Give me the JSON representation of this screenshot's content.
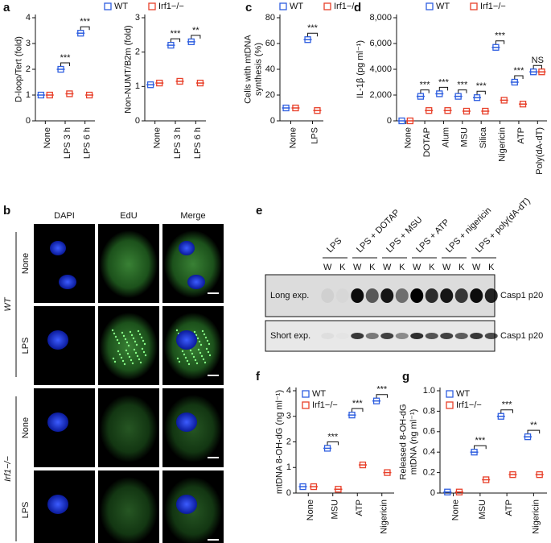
{
  "panel_labels": {
    "a": "a",
    "b": "b",
    "c": "c",
    "d": "d",
    "e": "e",
    "f": "f",
    "g": "g"
  },
  "chart_data": [
    {
      "type": "dot",
      "ylabel": "D-loop/Tert (fold)",
      "categories": [
        "None",
        "LPS 3 h",
        "LPS 6 h"
      ],
      "series": [
        {
          "name": "WT",
          "color": "#2f5fe0",
          "values": [
            1.0,
            2.0,
            3.4
          ]
        },
        {
          "name": "Irf1−/−",
          "color": "#e8402a",
          "values": [
            1.0,
            1.05,
            1.0
          ]
        }
      ],
      "significance": [
        null,
        "***",
        "***"
      ],
      "ylim": [
        0,
        4
      ],
      "yticks": [
        0,
        1,
        2,
        3,
        4
      ],
      "legend": "top"
    },
    {
      "type": "dot",
      "ylabel": "Non-NUMT/B2m (fold)",
      "categories": [
        "None",
        "LPS 3 h",
        "LPS 6 h"
      ],
      "series": [
        {
          "color": "#2f5fe0",
          "values": [
            1.05,
            2.2,
            2.3
          ]
        },
        {
          "color": "#e8402a",
          "values": [
            1.1,
            1.15,
            1.1
          ]
        }
      ],
      "significance": [
        null,
        "***",
        "**"
      ],
      "ylim": [
        0,
        3
      ],
      "yticks": [
        0,
        1,
        2,
        3
      ]
    },
    {
      "type": "dot",
      "ylabel": [
        "Cells with mtDNA",
        "synthesis (%)"
      ],
      "categories": [
        "None",
        "LPS"
      ],
      "series": [
        {
          "name": "WT",
          "color": "#2f5fe0",
          "values": [
            10,
            63
          ]
        },
        {
          "name": "Irf1−/−",
          "color": "#e8402a",
          "values": [
            10,
            8
          ]
        }
      ],
      "significance": [
        null,
        "***"
      ],
      "ylim": [
        0,
        80
      ],
      "yticks": [
        0,
        20,
        40,
        60,
        80
      ],
      "legend": "top"
    },
    {
      "type": "dot",
      "ylabel": "IL-1β (pg ml⁻¹)",
      "categories": [
        "None",
        "DOTAP",
        "Alum",
        "MSU",
        "Silica",
        "Nigericin",
        "ATP",
        "Poly(dA-dT)"
      ],
      "series": [
        {
          "name": "WT",
          "color": "#2f5fe0",
          "values": [
            0,
            1900,
            2100,
            1900,
            1800,
            5700,
            3000,
            3800
          ]
        },
        {
          "name": "Irf1−/−",
          "color": "#e8402a",
          "values": [
            0,
            800,
            800,
            750,
            750,
            1600,
            1300,
            3800
          ]
        }
      ],
      "significance": [
        null,
        "***",
        "***",
        "***",
        "***",
        "***",
        "***",
        "NS"
      ],
      "ylim": [
        0,
        8000
      ],
      "yticks": [
        0,
        {
          "value": 2000,
          "label": "2,000"
        },
        {
          "value": 4000,
          "label": "4,000"
        },
        {
          "value": 6000,
          "label": "6,000"
        },
        {
          "value": 8000,
          "label": "8,000"
        }
      ],
      "legend": "top"
    },
    {
      "type": "dot",
      "ylabel": "mtDNA 8-OH-dG (ng ml⁻¹)",
      "categories": [
        "None",
        "MSU",
        "ATP",
        "Nigericin"
      ],
      "series": [
        {
          "name": "WT",
          "color": "#2f5fe0",
          "values": [
            0.25,
            1.75,
            3.05,
            3.6
          ]
        },
        {
          "name": "Irf1−/−",
          "color": "#e8402a",
          "values": [
            0.25,
            0.15,
            1.1,
            0.8
          ]
        }
      ],
      "significance": [
        null,
        "***",
        "***",
        "***"
      ],
      "ylim": [
        0,
        4
      ],
      "yticks": [
        0,
        1,
        2,
        3,
        4
      ],
      "legend": "upper left"
    },
    {
      "type": "dot",
      "ylabel": [
        "Released 8-OH-dG",
        "mtDNA (ng ml⁻¹)"
      ],
      "categories": [
        "None",
        "MSU",
        "ATP",
        "Nigericin"
      ],
      "series": [
        {
          "name": "WT",
          "color": "#2f5fe0",
          "values": [
            0.01,
            0.4,
            0.75,
            0.55
          ]
        },
        {
          "name": "Irf1−/−",
          "color": "#e8402a",
          "values": [
            0.01,
            0.13,
            0.18,
            0.18
          ]
        }
      ],
      "significance": [
        null,
        "***",
        "***",
        "**"
      ],
      "ylim": [
        0,
        1.0
      ],
      "yticks": [
        0,
        0.2,
        0.4,
        0.6,
        0.8,
        {
          "value": 1.0,
          "label": "1.0"
        }
      ],
      "legend": "upper left"
    }
  ],
  "microscopy": {
    "channels": [
      "DAPI",
      "EdU",
      "Merge"
    ],
    "rows": [
      "None",
      "LPS",
      "None",
      "LPS"
    ],
    "groups": [
      "WT",
      "Irf1−/−"
    ]
  },
  "blot": {
    "treatments": [
      "LPS",
      "LPS + DOTAP",
      "LPS + MSU",
      "LPS + ATP",
      "LPS + nigericin",
      "LPS + poly(dA-dT)"
    ],
    "lanes": [
      "W",
      "K",
      "W",
      "K",
      "W",
      "K",
      "W",
      "K",
      "W",
      "K",
      "W",
      "K"
    ],
    "exposures": [
      "Long exp.",
      "Short exp."
    ],
    "bands": [
      "Casp1 p20",
      "Casp1 p20"
    ]
  }
}
